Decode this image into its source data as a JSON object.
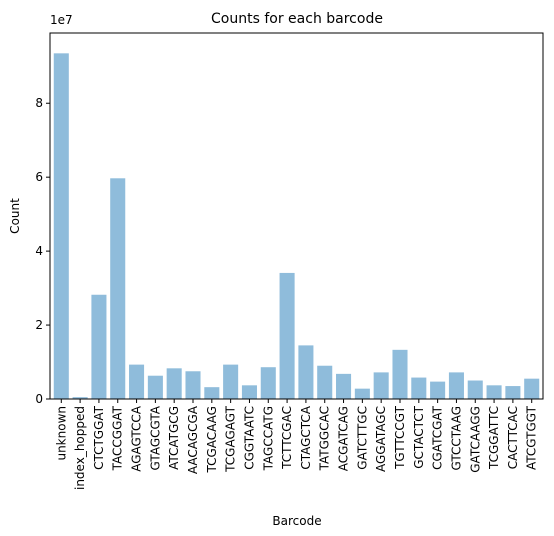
{
  "chart_data": {
    "type": "bar",
    "title": "Counts for each barcode",
    "xlabel": "Barcode",
    "ylabel": "Count",
    "y_offset_label": "1e7",
    "y_scale": 10000000,
    "ylim": [
      0,
      9.9
    ],
    "yticks": [
      0,
      2,
      4,
      6,
      8
    ],
    "bar_color": "#8fbcdb",
    "grid": false,
    "legend": "none",
    "categories": [
      "unknown",
      "index_hopped",
      "CTCTGGAT",
      "TACCGGAT",
      "AGAGTCCA",
      "GTAGCGTA",
      "ATCATGCG",
      "AACAGCGA",
      "TCGACAAG",
      "TCGAGAGT",
      "CGGTAATC",
      "TAGCCATG",
      "TCTTCGAC",
      "CTAGCTCA",
      "TATGGCAC",
      "ACGATCAG",
      "GATCTTGC",
      "AGGATAGC",
      "TGTTCCGT",
      "GCTACTCT",
      "CGATCGAT",
      "GTCCTAAG",
      "GATCAAGG",
      "TCGGATTC",
      "CACTTCAC",
      "ATCGTGGT"
    ],
    "values": [
      9.35,
      0.05,
      2.82,
      5.97,
      0.93,
      0.63,
      0.83,
      0.75,
      0.32,
      0.93,
      0.37,
      0.86,
      3.41,
      1.45,
      0.9,
      0.68,
      0.28,
      0.72,
      1.33,
      0.58,
      0.47,
      0.72,
      0.5,
      0.37,
      0.35,
      0.55
    ]
  }
}
